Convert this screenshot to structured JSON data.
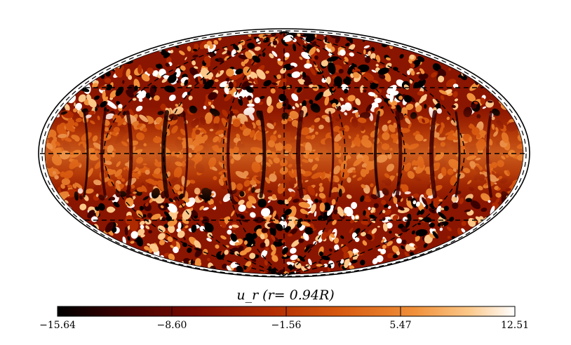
{
  "figure": {
    "colorbar_title": "u_r (r= 0.94R)",
    "colorbar_ticks": [
      "−15.64",
      "−8.60",
      "−1.56",
      "5.47",
      "12.51"
    ],
    "colormap": [
      "#000000",
      "#3c0000",
      "#7a0a00",
      "#b02a00",
      "#d85a10",
      "#f0903a",
      "#fbc88a",
      "#ffffff"
    ]
  },
  "chart_data": {
    "type": "heatmap",
    "projection": "mollweide",
    "variable": "u_r",
    "colorbar_title": "u_r (r= 0.94R)",
    "colorbar_range": [
      -15.64,
      12.51
    ],
    "colorbar_ticks": [
      -15.64,
      -8.6,
      -1.56,
      5.47,
      12.51
    ],
    "graticule": "dashed"
  }
}
